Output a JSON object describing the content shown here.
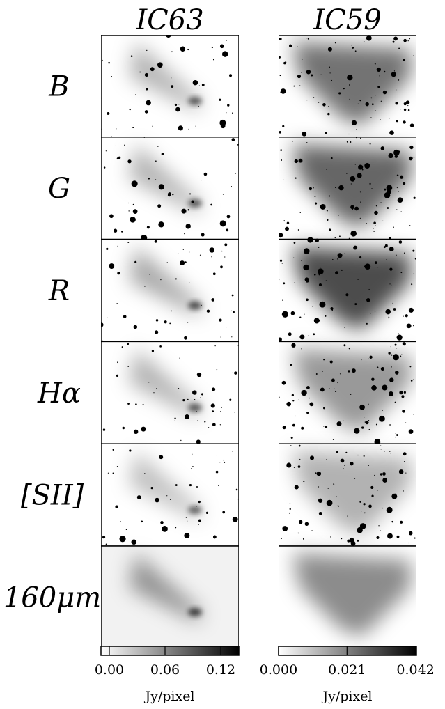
{
  "columns": [
    {
      "title": "IC63",
      "colorbar": {
        "range": [
          -0.009,
          0.1395
        ],
        "ticks": [
          {
            "value": 0,
            "label": "0.00"
          },
          {
            "value": 0.06,
            "label": "0.06"
          },
          {
            "value": 0.12,
            "label": "0.12"
          }
        ],
        "label": "Jy/pixel"
      }
    },
    {
      "title": "IC59",
      "colorbar": {
        "range": [
          0,
          0.0423
        ],
        "ticks": [
          {
            "value": 0,
            "label": "0.000"
          },
          {
            "value": 0.021,
            "label": "0.021"
          },
          {
            "value": 0.042,
            "label": "0.042"
          }
        ],
        "label": "Jy/pixel"
      }
    }
  ],
  "rows": [
    "B",
    "G",
    "R",
    "Hα",
    "[SII]",
    "160μm"
  ]
}
